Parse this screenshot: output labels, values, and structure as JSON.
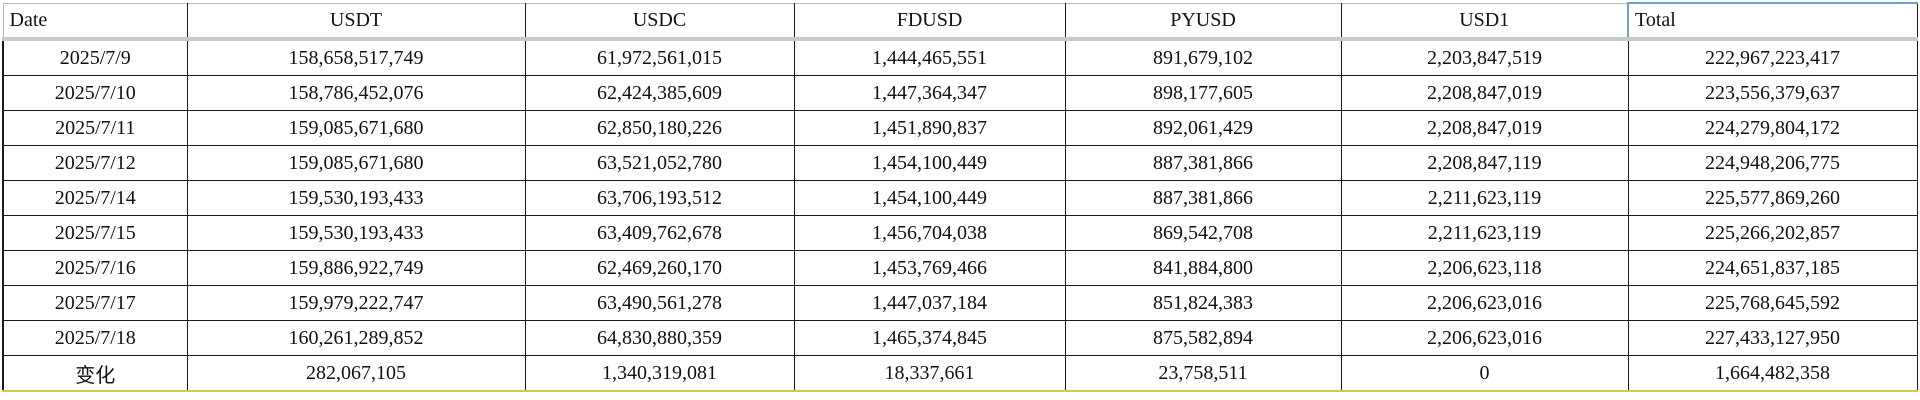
{
  "table": {
    "headers": [
      "Date",
      "USDT",
      "USDC",
      "FDUSD",
      "PYUSD",
      "USD1",
      "Total"
    ],
    "rows": [
      [
        "2025/7/9",
        "158,658,517,749",
        "61,972,561,015",
        "1,444,465,551",
        "891,679,102",
        "2,203,847,519",
        "222,967,223,417"
      ],
      [
        "2025/7/10",
        "158,786,452,076",
        "62,424,385,609",
        "1,447,364,347",
        "898,177,605",
        "2,208,847,019",
        "223,556,379,637"
      ],
      [
        "2025/7/11",
        "159,085,671,680",
        "62,850,180,226",
        "1,451,890,837",
        "892,061,429",
        "2,208,847,019",
        "224,279,804,172"
      ],
      [
        "2025/7/12",
        "159,085,671,680",
        "63,521,052,780",
        "1,454,100,449",
        "887,381,866",
        "2,208,847,119",
        "224,948,206,775"
      ],
      [
        "2025/7/14",
        "159,530,193,433",
        "63,706,193,512",
        "1,454,100,449",
        "887,381,866",
        "2,211,623,119",
        "225,577,869,260"
      ],
      [
        "2025/7/15",
        "159,530,193,433",
        "63,409,762,678",
        "1,456,704,038",
        "869,542,708",
        "2,211,623,119",
        "225,266,202,857"
      ],
      [
        "2025/7/16",
        "159,886,922,749",
        "62,469,260,170",
        "1,453,769,466",
        "841,884,800",
        "2,206,623,118",
        "224,651,837,185"
      ],
      [
        "2025/7/17",
        "159,979,222,747",
        "63,490,561,278",
        "1,447,037,184",
        "851,824,383",
        "2,206,623,016",
        "225,768,645,592"
      ],
      [
        "2025/7/18",
        "160,261,289,852",
        "64,830,880,359",
        "1,465,374,845",
        "875,582,894",
        "2,206,623,016",
        "227,433,127,950"
      ]
    ],
    "change_row": [
      "变化",
      "282,067,105",
      "1,340,319,081",
      "18,337,661",
      "23,758,511",
      "0",
      "1,664,482,358"
    ]
  },
  "chart_data": {
    "type": "table",
    "columns": [
      "Date",
      "USDT",
      "USDC",
      "FDUSD",
      "PYUSD",
      "USD1",
      "Total"
    ],
    "rows": [
      [
        "2025/7/9",
        158658517749,
        61972561015,
        1444465551,
        891679102,
        2203847519,
        222967223417
      ],
      [
        "2025/7/10",
        158786452076,
        62424385609,
        1447364347,
        898177605,
        2208847019,
        223556379637
      ],
      [
        "2025/7/11",
        159085671680,
        62850180226,
        1451890837,
        892061429,
        2208847019,
        224279804172
      ],
      [
        "2025/7/12",
        159085671680,
        63521052780,
        1454100449,
        887381866,
        2208847119,
        224948206775
      ],
      [
        "2025/7/14",
        159530193433,
        63706193512,
        1454100449,
        887381866,
        2211623119,
        225577869260
      ],
      [
        "2025/7/15",
        159530193433,
        63409762678,
        1456704038,
        869542708,
        2211623119,
        225266202857
      ],
      [
        "2025/7/16",
        159886922749,
        62469260170,
        1453769466,
        841884800,
        2206623118,
        224651837185
      ],
      [
        "2025/7/17",
        159979222747,
        63490561278,
        1447037184,
        851824383,
        2206623016,
        225768645592
      ],
      [
        "2025/7/18",
        160261289852,
        64830880359,
        1465374845,
        875582894,
        2206623016,
        227433127950
      ]
    ],
    "summary_row": [
      "变化",
      282067105,
      1340319081,
      18337661,
      23758511,
      0,
      1664482358
    ]
  }
}
